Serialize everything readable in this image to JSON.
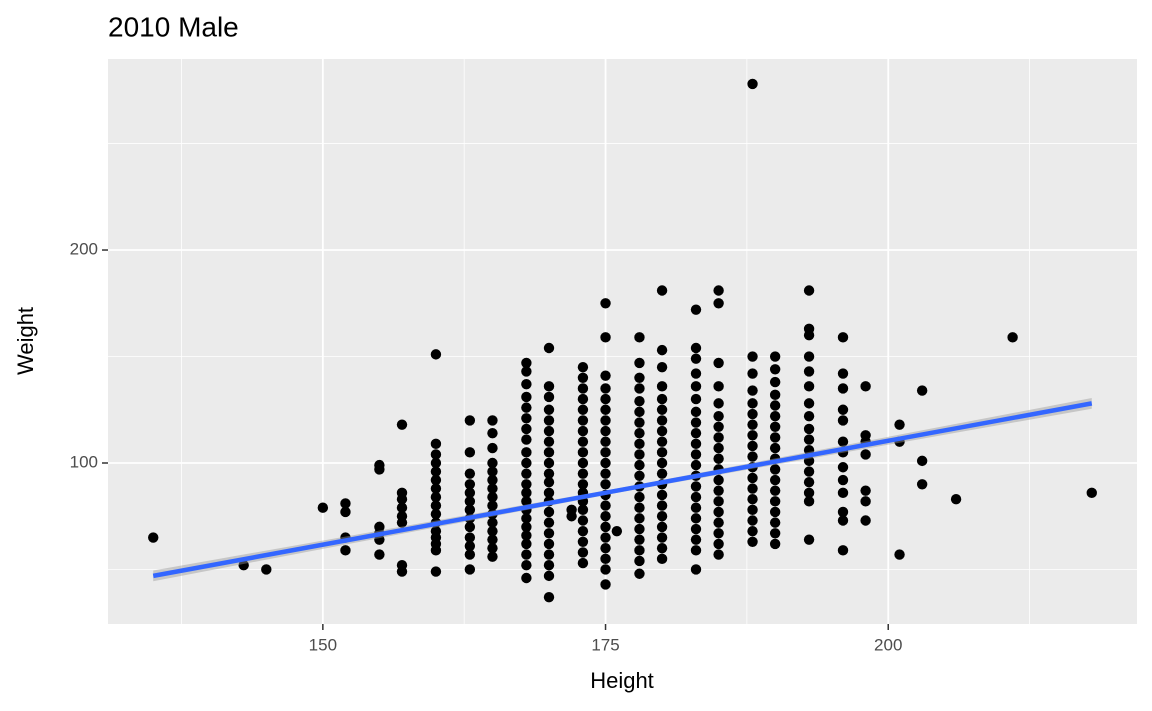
{
  "chart_data": {
    "type": "scatter",
    "title": "2010 Male",
    "x_label": "Height",
    "y_label": "Weight",
    "xlim": [
      131,
      222
    ],
    "ylim": [
      24.4,
      289.7
    ],
    "xticks": [
      150,
      175,
      200
    ],
    "yticks": [
      100,
      200
    ],
    "x_minor_grid": [
      137.5,
      162.5,
      187.5,
      212.5
    ],
    "y_minor_grid": [
      50,
      150,
      250
    ],
    "grid": true,
    "color": "#000000",
    "x": [
      135,
      143,
      145,
      150,
      152,
      152,
      152,
      152,
      155,
      155,
      155,
      155,
      155,
      155,
      157,
      157,
      157,
      157,
      157,
      157,
      157,
      157,
      160,
      160,
      160,
      160,
      160,
      160,
      160,
      160,
      160,
      160,
      160,
      160,
      160,
      160,
      160,
      160,
      163,
      163,
      163,
      163,
      163,
      163,
      163,
      163,
      163,
      163,
      163,
      163,
      163,
      165,
      165,
      165,
      165,
      165,
      165,
      165,
      165,
      165,
      165,
      165,
      165,
      165,
      165,
      165,
      168,
      168,
      168,
      168,
      168,
      168,
      168,
      168,
      168,
      168,
      168,
      168,
      168,
      168,
      168,
      168,
      168,
      168,
      168,
      168,
      168,
      168,
      170,
      170,
      170,
      170,
      170,
      170,
      170,
      170,
      170,
      170,
      170,
      170,
      170,
      170,
      170,
      170,
      170,
      170,
      170,
      170,
      170,
      172,
      172,
      173,
      173,
      173,
      173,
      173,
      173,
      173,
      173,
      173,
      173,
      173,
      173,
      173,
      173,
      173,
      173,
      173,
      173,
      173,
      173,
      175,
      175,
      175,
      175,
      175,
      175,
      175,
      175,
      175,
      175,
      175,
      175,
      175,
      175,
      175,
      175,
      175,
      175,
      175,
      175,
      175,
      175,
      176,
      178,
      178,
      178,
      178,
      178,
      178,
      178,
      178,
      178,
      178,
      178,
      178,
      178,
      178,
      178,
      178,
      178,
      178,
      178,
      178,
      178,
      180,
      180,
      180,
      180,
      180,
      180,
      180,
      180,
      180,
      180,
      180,
      180,
      180,
      180,
      180,
      180,
      180,
      180,
      180,
      180,
      183,
      183,
      183,
      183,
      183,
      183,
      183,
      183,
      183,
      183,
      183,
      183,
      183,
      183,
      183,
      183,
      183,
      183,
      183,
      183,
      183,
      185,
      185,
      185,
      185,
      185,
      185,
      185,
      185,
      185,
      185,
      185,
      185,
      185,
      185,
      185,
      185,
      185,
      185,
      185,
      188,
      188,
      188,
      188,
      188,
      188,
      188,
      188,
      188,
      188,
      188,
      188,
      188,
      188,
      188,
      188,
      188,
      188,
      190,
      190,
      190,
      190,
      190,
      190,
      190,
      190,
      190,
      190,
      190,
      190,
      190,
      190,
      190,
      190,
      190,
      190,
      193,
      193,
      193,
      193,
      193,
      193,
      193,
      193,
      193,
      193,
      193,
      193,
      193,
      193,
      193,
      193,
      193,
      196,
      196,
      196,
      196,
      196,
      196,
      196,
      196,
      196,
      196,
      196,
      196,
      196,
      198,
      198,
      198,
      198,
      198,
      198,
      198,
      201,
      201,
      201,
      203,
      203,
      203,
      206,
      211,
      218
    ],
    "values": [
      65,
      52,
      50,
      79,
      59,
      65,
      77,
      81,
      57,
      64,
      67,
      70,
      97,
      99,
      49,
      52,
      72,
      75,
      79,
      83,
      86,
      118,
      49,
      59,
      62,
      65,
      68,
      72,
      76,
      80,
      84,
      88,
      92,
      96,
      100,
      104,
      109,
      151,
      50,
      57,
      61,
      65,
      70,
      74,
      78,
      82,
      86,
      90,
      95,
      105,
      120,
      56,
      60,
      64,
      68,
      72,
      76,
      80,
      84,
      88,
      92,
      96,
      100,
      107,
      114,
      120,
      46,
      52,
      57,
      62,
      66,
      70,
      74,
      78,
      82,
      86,
      90,
      95,
      100,
      105,
      111,
      116,
      121,
      126,
      131,
      137,
      143,
      147,
      37,
      47,
      52,
      57,
      62,
      67,
      72,
      77,
      82,
      86,
      91,
      95,
      100,
      105,
      110,
      115,
      120,
      125,
      131,
      136,
      154,
      75,
      78,
      53,
      58,
      63,
      68,
      73,
      78,
      82,
      86,
      90,
      95,
      100,
      105,
      110,
      115,
      120,
      125,
      130,
      135,
      140,
      145,
      43,
      50,
      55,
      60,
      65,
      70,
      75,
      80,
      85,
      90,
      95,
      100,
      105,
      110,
      115,
      120,
      125,
      130,
      135,
      141,
      159,
      175,
      68,
      48,
      54,
      59,
      64,
      69,
      74,
      79,
      84,
      89,
      94,
      99,
      104,
      109,
      114,
      119,
      124,
      129,
      135,
      140,
      147,
      159,
      55,
      60,
      65,
      70,
      75,
      80,
      85,
      90,
      95,
      100,
      105,
      110,
      115,
      120,
      125,
      130,
      136,
      145,
      153,
      181,
      50,
      59,
      64,
      69,
      74,
      79,
      84,
      89,
      94,
      99,
      104,
      109,
      114,
      119,
      124,
      130,
      136,
      142,
      149,
      154,
      172,
      57,
      62,
      67,
      72,
      77,
      82,
      87,
      92,
      97,
      102,
      107,
      112,
      117,
      122,
      128,
      136,
      147,
      175,
      181,
      63,
      68,
      73,
      78,
      83,
      88,
      93,
      98,
      103,
      108,
      113,
      118,
      123,
      128,
      134,
      142,
      150,
      278,
      62,
      67,
      72,
      77,
      82,
      87,
      92,
      97,
      102,
      107,
      112,
      117,
      122,
      127,
      132,
      138,
      144,
      150,
      64,
      82,
      86,
      91,
      96,
      101,
      106,
      111,
      116,
      122,
      128,
      136,
      143,
      150,
      160,
      163,
      181,
      59,
      73,
      77,
      86,
      92,
      98,
      105,
      110,
      120,
      125,
      135,
      142,
      159,
      73,
      82,
      87,
      104,
      110,
      113,
      136,
      57,
      110,
      118,
      90,
      101,
      134,
      83,
      159,
      86
    ],
    "trend": {
      "color": "#3366ff",
      "x": [
        135,
        218
      ],
      "values": [
        47,
        128
      ]
    },
    "ribbon": {
      "color": "#999999",
      "x": [
        135,
        176,
        218
      ],
      "lower": [
        44.5,
        86,
        125.5
      ],
      "upper": [
        49.5,
        88,
        130.5
      ]
    }
  }
}
